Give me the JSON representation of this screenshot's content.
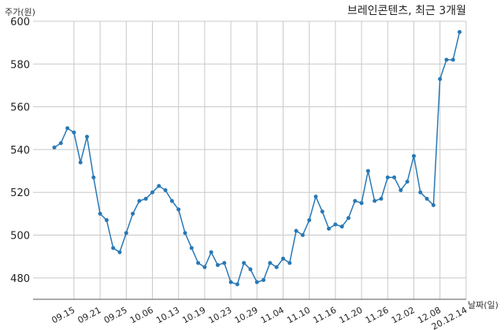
{
  "chart_data": {
    "type": "line",
    "title": "브레인콘텐츠, 최근 3개월",
    "xlabel": "날짜(일)",
    "ylabel": "주가(원)",
    "ylim": [
      470,
      600
    ],
    "yticks": [
      480,
      500,
      520,
      540,
      560,
      580,
      600
    ],
    "xtick_labels": [
      "09.15",
      "09.21",
      "09.25",
      "10.06",
      "10.13",
      "10.19",
      "10.23",
      "10.29",
      "11.04",
      "11.10",
      "11.16",
      "11.20",
      "11.26",
      "12.02",
      "12.08",
      "20.12.14"
    ],
    "xtick_index": [
      3,
      7,
      11,
      15,
      19,
      23,
      27,
      31,
      35,
      39,
      43,
      47,
      51,
      55,
      59,
      63
    ],
    "grid": true,
    "line_color": "#2878b5",
    "series": [
      {
        "values": [
          541,
          543,
          550,
          548,
          534,
          546,
          527,
          510,
          507,
          494,
          492,
          501,
          510,
          516,
          517,
          520,
          523,
          521,
          516,
          512,
          501,
          494,
          487,
          485,
          492,
          486,
          487,
          478,
          477,
          487,
          484,
          478,
          479,
          487,
          485,
          489,
          487,
          502,
          500,
          507,
          518,
          511,
          503,
          505,
          504,
          508,
          516,
          515,
          530,
          516,
          517,
          527,
          527,
          521,
          525,
          537,
          520,
          517,
          514,
          573,
          582,
          582,
          595
        ]
      }
    ]
  }
}
